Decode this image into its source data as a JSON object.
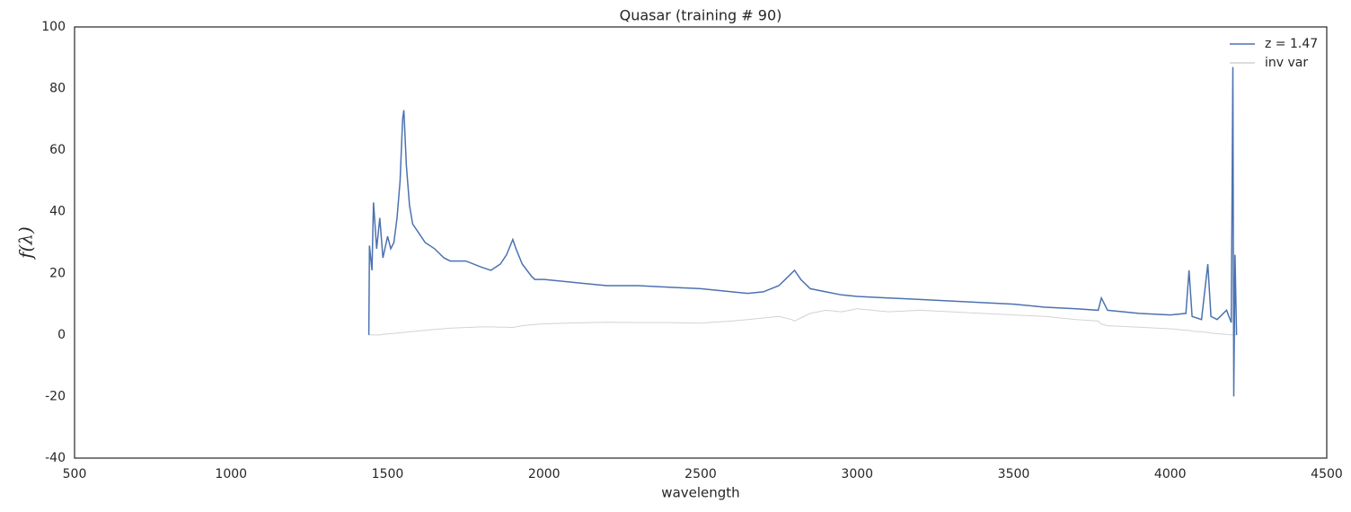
{
  "chart_data": {
    "type": "line",
    "title": "Quasar (training # 90)",
    "x_label": "wavelength",
    "y_label": "f(λ)",
    "x": [
      1440,
      1442,
      1450,
      1455,
      1465,
      1475,
      1485,
      1500,
      1510,
      1520,
      1530,
      1540,
      1548,
      1552,
      1560,
      1570,
      1580,
      1600,
      1620,
      1650,
      1680,
      1700,
      1750,
      1800,
      1830,
      1860,
      1880,
      1900,
      1910,
      1930,
      1960,
      1970,
      2000,
      2100,
      2200,
      2300,
      2400,
      2500,
      2600,
      2650,
      2700,
      2750,
      2790,
      2800,
      2820,
      2850,
      2900,
      2950,
      3000,
      3100,
      3200,
      3300,
      3400,
      3500,
      3600,
      3700,
      3770,
      3780,
      3800,
      3900,
      4000,
      4050,
      4060,
      4070,
      4100,
      4120,
      4130,
      4150,
      4180,
      4195,
      4200,
      4203,
      4207,
      4212
    ],
    "series": [
      {
        "name": "z = 1.47",
        "color": "#4c72b0",
        "values": [
          0,
          29,
          21,
          43,
          28,
          38,
          25,
          32,
          28,
          30,
          38,
          50,
          70,
          73,
          55,
          42,
          36,
          33,
          30,
          28,
          25,
          24,
          24,
          22,
          21,
          23,
          26,
          31,
          28,
          23,
          19,
          18,
          18,
          17,
          16,
          16,
          15.5,
          15,
          14,
          13.5,
          14,
          16,
          20,
          21,
          18,
          15,
          14,
          13,
          12.5,
          12,
          11.5,
          11,
          10.5,
          10,
          9,
          8.5,
          8,
          12,
          8,
          7,
          6.5,
          7,
          21,
          6,
          5,
          23,
          6,
          5,
          8,
          4,
          87,
          -20,
          26,
          0
        ]
      },
      {
        "name": "inv var",
        "color": "#d3d3d3",
        "values": [
          0,
          0,
          0,
          0,
          0,
          0,
          0.2,
          0.3,
          0.4,
          0.5,
          0.6,
          0.7,
          0.8,
          0.8,
          0.9,
          1,
          1.1,
          1.3,
          1.5,
          1.8,
          2,
          2.2,
          2.4,
          2.6,
          2.6,
          2.5,
          2.5,
          2.4,
          2.6,
          3,
          3.3,
          3.4,
          3.6,
          3.9,
          4.1,
          4,
          4,
          3.8,
          4.5,
          5,
          5.5,
          6,
          5,
          4.5,
          5.5,
          7,
          8,
          7.5,
          8.5,
          7.5,
          8,
          7.5,
          7,
          6.5,
          6,
          5,
          4.5,
          3.5,
          3,
          2.5,
          2,
          1.5,
          1.5,
          1.2,
          1,
          0.8,
          0.6,
          0.4,
          0.2,
          0,
          0,
          0,
          0,
          0
        ]
      }
    ],
    "xlim": [
      500,
      4500
    ],
    "xticks": [
      500,
      1000,
      1500,
      2000,
      2500,
      3000,
      3500,
      4000,
      4500
    ],
    "ylim": [
      -40,
      100
    ],
    "yticks": [
      -40,
      -20,
      0,
      20,
      40,
      60,
      80,
      100
    ],
    "legend": "upper right",
    "grid": false
  }
}
